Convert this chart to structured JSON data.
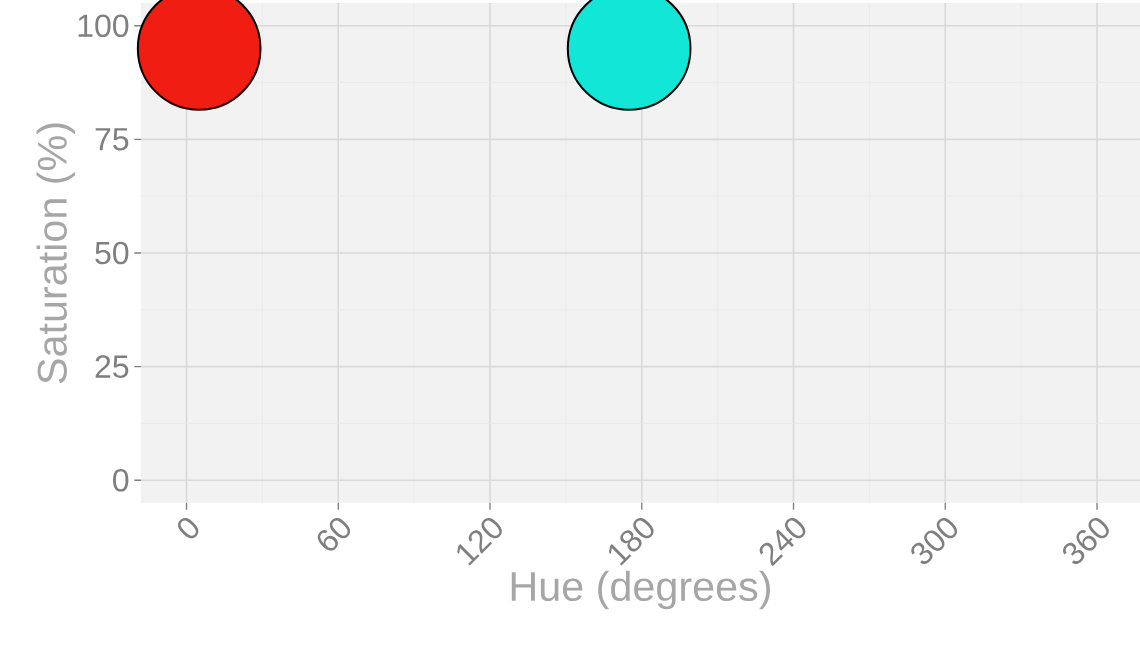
{
  "chart_data": {
    "type": "scatter",
    "xlabel": "Hue (degrees)",
    "ylabel": "Saturation (%)",
    "x": [
      5,
      175
    ],
    "values": [
      95,
      95
    ],
    "colors": [
      "#f01e12",
      "#12e6d6"
    ],
    "xlim": [
      -18,
      377
    ],
    "ylim": [
      -5,
      105
    ],
    "xticks": [
      0,
      60,
      120,
      180,
      240,
      300,
      360
    ],
    "yticks": [
      0,
      25,
      50,
      75,
      100
    ],
    "grid": true
  }
}
